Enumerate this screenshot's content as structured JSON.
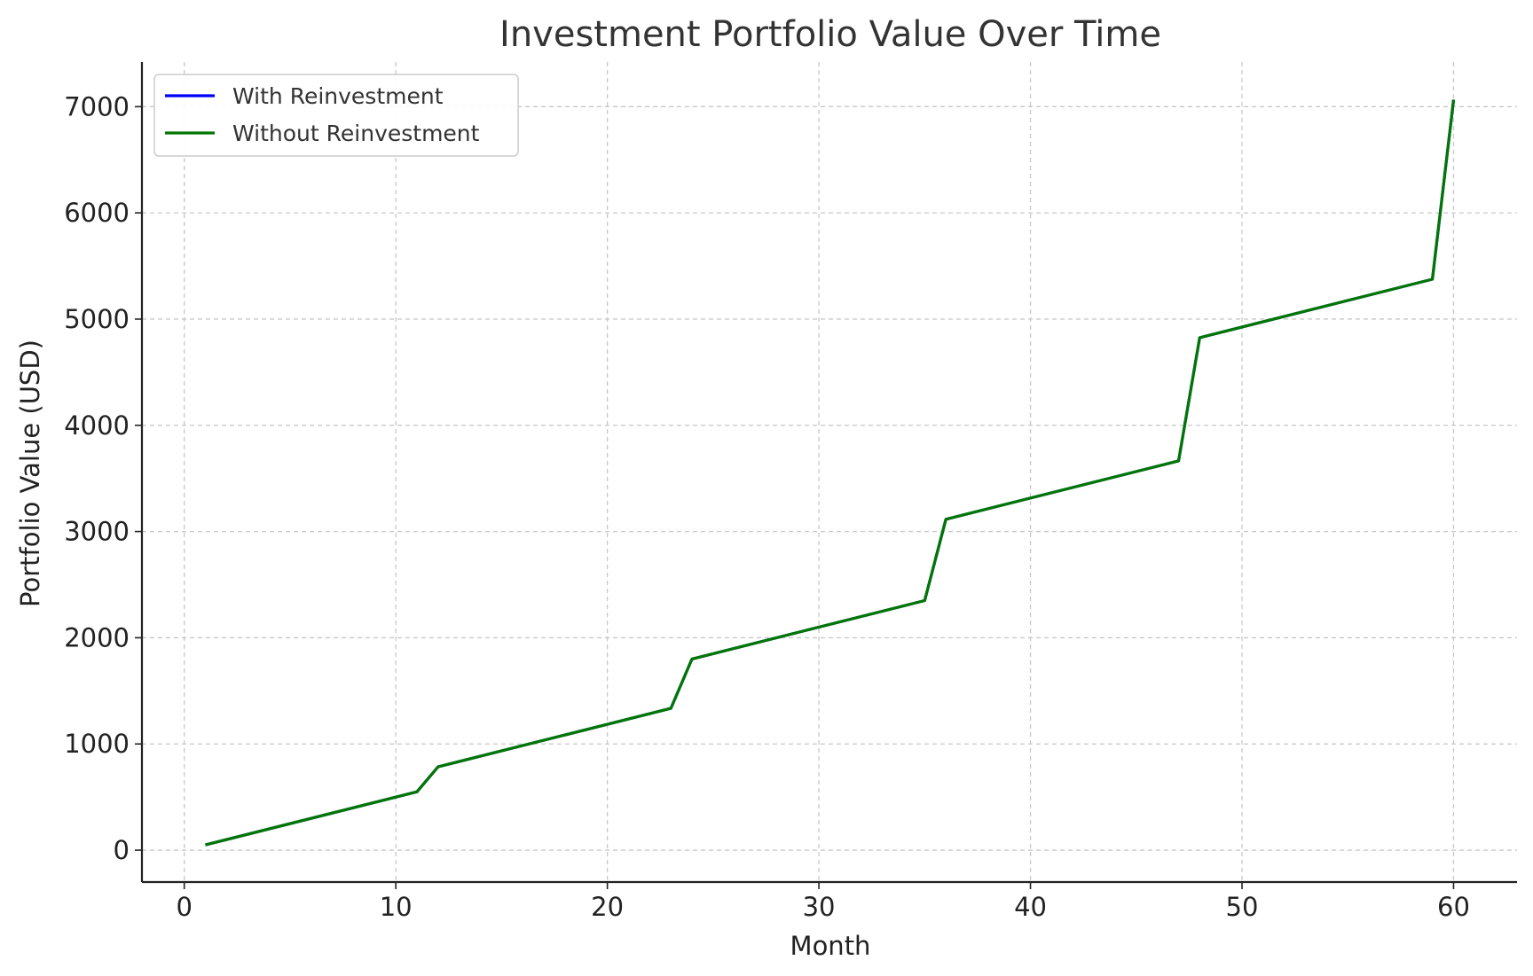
{
  "chart_data": {
    "type": "line",
    "title": "Investment Portfolio Value Over Time",
    "xlabel": "Month",
    "ylabel": "Portfolio Value (USD)",
    "xlim": [
      -2,
      63
    ],
    "ylim": [
      -300,
      7420
    ],
    "xticks": [
      0,
      10,
      20,
      30,
      40,
      50,
      60
    ],
    "yticks": [
      0,
      1000,
      2000,
      3000,
      4000,
      5000,
      6000,
      7000
    ],
    "grid": true,
    "legend_position": "top-left",
    "series": [
      {
        "name": "With Reinvestment",
        "color": "#0000ff",
        "points": [
          [
            1,
            50
          ],
          [
            11,
            550
          ],
          [
            12,
            785
          ],
          [
            23,
            1335
          ],
          [
            24,
            1800
          ],
          [
            35,
            2350
          ],
          [
            36,
            3115
          ],
          [
            47,
            3665
          ],
          [
            48,
            4825
          ],
          [
            59,
            5375
          ],
          [
            60,
            7065
          ]
        ]
      },
      {
        "name": "Without Reinvestment",
        "color": "#007700",
        "points": [
          [
            1,
            50
          ],
          [
            11,
            550
          ],
          [
            12,
            785
          ],
          [
            23,
            1335
          ],
          [
            24,
            1800
          ],
          [
            35,
            2350
          ],
          [
            36,
            3115
          ],
          [
            47,
            3665
          ],
          [
            48,
            4825
          ],
          [
            59,
            5375
          ],
          [
            60,
            7065
          ]
        ]
      }
    ]
  }
}
